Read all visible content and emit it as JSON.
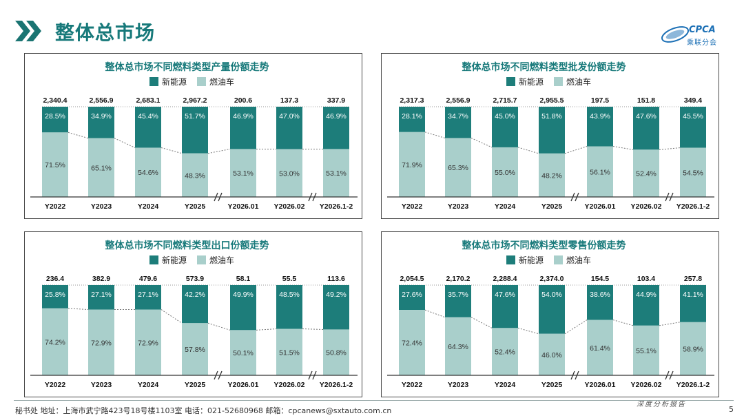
{
  "header": {
    "title": "整体总市场"
  },
  "logo": {
    "text": "CPCA",
    "sub": "乘联分会"
  },
  "colors": {
    "nev": "#1d7d7a",
    "fuel": "#a9cfcb",
    "title": "#17797a"
  },
  "footer": {
    "address": "秘书处   地址：上海市武宁路423号18号楼1103室   电话：021-52680968    邮箱：cpcanews@sxtauto.com.cn",
    "right": "深度分析报告",
    "page": "5"
  },
  "chart_data": [
    {
      "type": "bar",
      "title": "整体总市场不同燃料类型产量份额走势",
      "categories": [
        "Y2022",
        "Y2023",
        "Y2024",
        "Y2025",
        "Y2026.01",
        "Y2026.02",
        "Y2026.1-2"
      ],
      "totals": [
        "2,340.4",
        "2,556.9",
        "2,683.1",
        "2,967.2",
        "200.6",
        "137.3",
        "337.9"
      ],
      "series": [
        {
          "name": "新能源",
          "values": [
            28.5,
            34.9,
            45.4,
            51.7,
            46.9,
            47.0,
            46.9
          ],
          "labels": [
            "28.5%",
            "34.9%",
            "45.4%",
            "51.7%",
            "46.9%",
            "47.0%",
            "46.9%"
          ]
        },
        {
          "name": "燃油车",
          "values": [
            71.5,
            65.1,
            54.6,
            48.3,
            53.1,
            53.0,
            53.1
          ],
          "labels": [
            "71.5%",
            "65.1%",
            "54.6%",
            "48.3%",
            "53.1%",
            "53.0%",
            "53.1%"
          ]
        }
      ],
      "ylim": [
        0,
        100
      ],
      "legend": "top-center"
    },
    {
      "type": "bar",
      "title": "整体总市场不同燃料类型批发份额走势",
      "categories": [
        "Y2022",
        "Y2023",
        "Y2024",
        "Y2025",
        "Y2026.01",
        "Y2026.02",
        "Y2026.1-2"
      ],
      "totals": [
        "2,317.3",
        "2,556.9",
        "2,715.7",
        "2,955.5",
        "197.5",
        "151.8",
        "349.4"
      ],
      "series": [
        {
          "name": "新能源",
          "values": [
            28.1,
            34.7,
            45.0,
            51.8,
            43.9,
            47.6,
            45.5
          ],
          "labels": [
            "28.1%",
            "34.7%",
            "45.0%",
            "51.8%",
            "43.9%",
            "47.6%",
            "45.5%"
          ]
        },
        {
          "name": "燃油车",
          "values": [
            71.9,
            65.3,
            55.0,
            48.2,
            56.1,
            52.4,
            54.5
          ],
          "labels": [
            "71.9%",
            "65.3%",
            "55.0%",
            "48.2%",
            "56.1%",
            "52.4%",
            "54.5%"
          ]
        }
      ],
      "ylim": [
        0,
        100
      ],
      "legend": "top-center"
    },
    {
      "type": "bar",
      "title": "整体总市场不同燃料类型出口份额走势",
      "categories": [
        "Y2022",
        "Y2023",
        "Y2024",
        "Y2025",
        "Y2026.01",
        "Y2026.02",
        "Y2026.1-2"
      ],
      "totals": [
        "236.4",
        "382.9",
        "479.6",
        "573.9",
        "58.1",
        "55.5",
        "113.6"
      ],
      "series": [
        {
          "name": "新能源",
          "values": [
            25.8,
            27.1,
            27.1,
            42.2,
            49.9,
            48.5,
            49.2
          ],
          "labels": [
            "25.8%",
            "27.1%",
            "27.1%",
            "42.2%",
            "49.9%",
            "48.5%",
            "49.2%"
          ]
        },
        {
          "name": "燃油车",
          "values": [
            74.2,
            72.9,
            72.9,
            57.8,
            50.1,
            51.5,
            50.8
          ],
          "labels": [
            "74.2%",
            "72.9%",
            "72.9%",
            "57.8%",
            "50.1%",
            "51.5%",
            "50.8%"
          ]
        }
      ],
      "ylim": [
        0,
        100
      ],
      "legend": "top-center"
    },
    {
      "type": "bar",
      "title": "整体总市场不同燃料类型零售份额走势",
      "categories": [
        "Y2022",
        "Y2023",
        "Y2024",
        "Y2025",
        "Y2026.01",
        "Y2026.02",
        "Y2026.1-2"
      ],
      "totals": [
        "2,054.5",
        "2,170.2",
        "2,288.4",
        "2,374.0",
        "154.5",
        "103.4",
        "257.8"
      ],
      "series": [
        {
          "name": "新能源",
          "values": [
            27.6,
            35.7,
            47.6,
            54.0,
            38.6,
            44.9,
            41.1
          ],
          "labels": [
            "27.6%",
            "35.7%",
            "47.6%",
            "54.0%",
            "38.6%",
            "44.9%",
            "41.1%"
          ]
        },
        {
          "name": "燃油车",
          "values": [
            72.4,
            64.3,
            52.4,
            46.0,
            61.4,
            55.1,
            58.9
          ],
          "labels": [
            "72.4%",
            "64.3%",
            "52.4%",
            "46.0%",
            "61.4%",
            "55.1%",
            "58.9%"
          ]
        }
      ],
      "ylim": [
        0,
        100
      ],
      "legend": "top-center"
    }
  ]
}
